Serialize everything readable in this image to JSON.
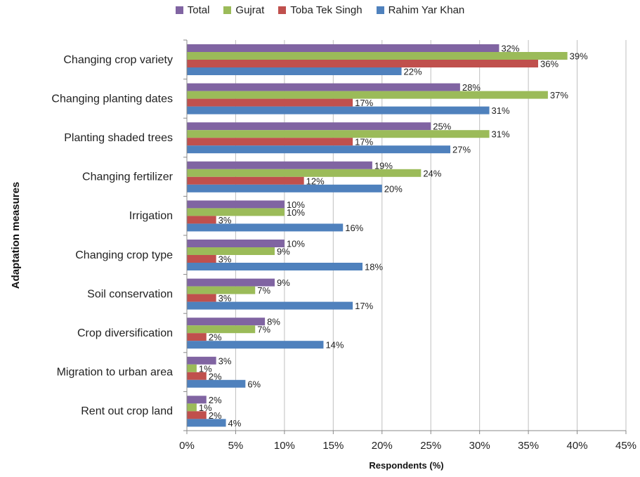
{
  "chart_data": {
    "type": "bar",
    "orientation": "horizontal",
    "title": "",
    "xlabel": "Respondents (%)",
    "ylabel": "Adaptation measures",
    "xlim": [
      0,
      45
    ],
    "x_ticks": [
      "0%",
      "5%",
      "10%",
      "15%",
      "20%",
      "25%",
      "30%",
      "35%",
      "40%",
      "45%"
    ],
    "grid": "vertical",
    "legend_position": "top",
    "categories": [
      "Changing crop variety",
      "Changing planting dates",
      "Planting shaded trees",
      "Changing fertilizer",
      "Irrigation",
      "Changing crop type",
      "Soil conservation",
      "Crop diversification",
      "Migration to urban area",
      "Rent out crop land"
    ],
    "series": [
      {
        "name": "Total",
        "color": "#8064A2",
        "values": [
          32,
          28,
          25,
          19,
          10,
          10,
          9,
          8,
          3,
          2
        ],
        "labels": [
          "32%",
          "28%",
          "25%",
          "19%",
          "10%",
          "10%",
          "9%",
          "8%",
          "3%",
          "2%"
        ]
      },
      {
        "name": "Gujrat",
        "color": "#9BBB59",
        "values": [
          39,
          37,
          31,
          24,
          10,
          9,
          7,
          7,
          1,
          1
        ],
        "labels": [
          "39%",
          "37%",
          "31%",
          "24%",
          "10%",
          "9%",
          "7%",
          "7%",
          "1%",
          "1%"
        ]
      },
      {
        "name": "Toba Tek Singh",
        "color": "#C0504D",
        "values": [
          36,
          17,
          17,
          12,
          3,
          3,
          3,
          2,
          2,
          2
        ],
        "labels": [
          "36%",
          "17%",
          "17%",
          "12%",
          "3%",
          "3%",
          "3%",
          "2%",
          "2%",
          "2%"
        ]
      },
      {
        "name": "Rahim Yar Khan",
        "color": "#4F81BD",
        "values": [
          22,
          31,
          27,
          20,
          16,
          18,
          17,
          14,
          6,
          4
        ],
        "labels": [
          "22%",
          "31%",
          "27%",
          "20%",
          "16%",
          "18%",
          "17%",
          "14%",
          "6%",
          "4%"
        ]
      }
    ]
  }
}
